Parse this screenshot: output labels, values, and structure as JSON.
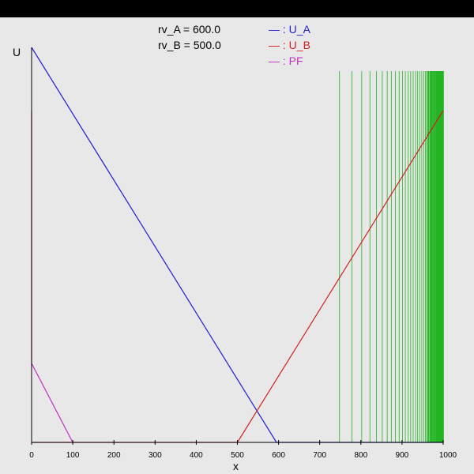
{
  "chart_data": {
    "type": "line",
    "title": "",
    "xlabel": "x",
    "ylabel": "U",
    "xlim": [
      0,
      1000
    ],
    "x_ticks": [
      0,
      100,
      200,
      300,
      400,
      500,
      600,
      700,
      800,
      900,
      1000
    ],
    "annotations": [
      {
        "text": "rv_A = 600.0"
      },
      {
        "text": "rv_B = 500.0"
      }
    ],
    "series": [
      {
        "name": "U_A",
        "color": "#1f1fd0",
        "points": [
          [
            0,
            1.0
          ],
          [
            595,
            0.0
          ],
          [
            1000,
            0.0
          ]
        ]
      },
      {
        "name": "U_B",
        "color": "#d02020",
        "points": [
          [
            0,
            0.0
          ],
          [
            500,
            0.0
          ],
          [
            1000,
            0.84
          ]
        ]
      },
      {
        "name": "PF",
        "color": "#c030c0",
        "points": [
          [
            0,
            0.84
          ],
          [
            0,
            0.2
          ],
          [
            100,
            0.0
          ]
        ]
      }
    ],
    "legend_labels": [
      "— : U_A",
      "— : U_B",
      "— : PF"
    ],
    "legend_placement": "top-center",
    "vlines": {
      "color": "#22b422",
      "x": [
        748,
        778,
        802,
        822,
        838,
        852,
        864,
        874,
        884,
        893,
        901,
        908,
        915,
        921,
        927,
        933,
        938,
        943,
        948,
        953,
        957,
        961,
        965,
        969,
        972,
        975,
        978,
        981,
        984,
        987,
        990,
        993,
        996,
        998,
        1000
      ],
      "y_top": 0.94
    }
  }
}
